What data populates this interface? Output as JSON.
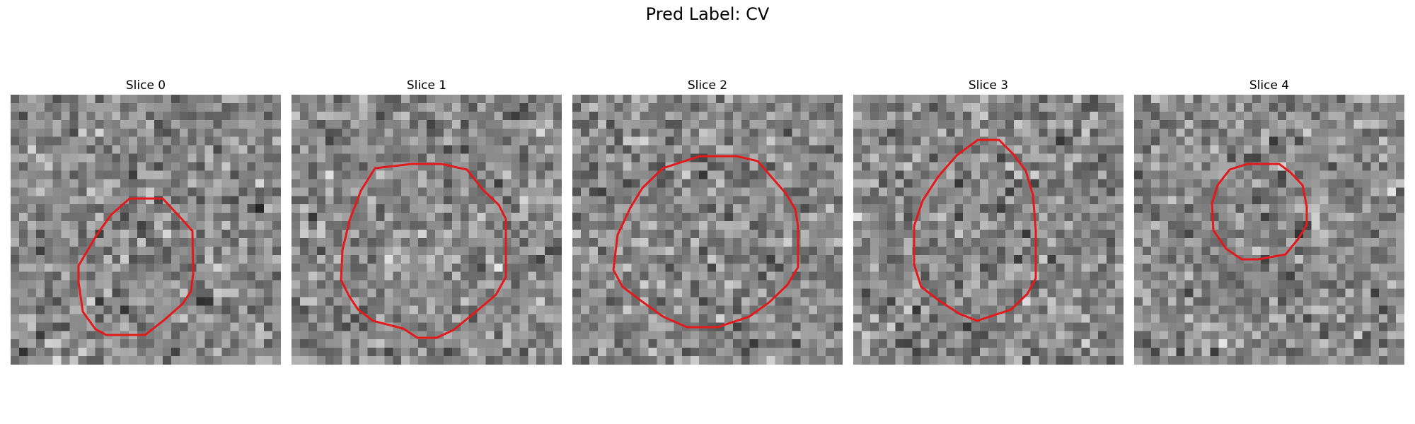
{
  "figure": {
    "title": "Pred Label: CV",
    "contour_color": "#e31a1c",
    "colormap": "gray"
  },
  "panels": [
    {
      "title": "Slice 0"
    },
    {
      "title": "Slice 1"
    },
    {
      "title": "Slice 2"
    },
    {
      "title": "Slice 3"
    },
    {
      "title": "Slice 4"
    }
  ]
}
